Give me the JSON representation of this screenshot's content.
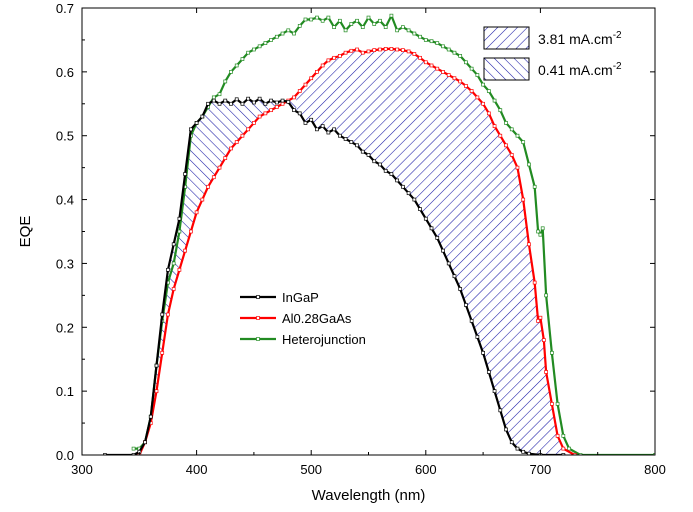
{
  "chart_data": {
    "type": "line",
    "xlabel": "Wavelength (nm)",
    "ylabel": "EQE",
    "xlim": [
      300,
      800
    ],
    "ylim": [
      0,
      0.7
    ],
    "xticks": [
      300,
      400,
      500,
      600,
      700,
      800
    ],
    "yticks": [
      0.0,
      0.1,
      0.2,
      0.3,
      0.4,
      0.5,
      0.6,
      0.7
    ],
    "grid": false,
    "legend_position": "center-left",
    "series": [
      {
        "name": "InGaP",
        "color": "#000000",
        "points": [
          [
            320,
            0
          ],
          [
            345,
            0
          ],
          [
            350,
            0.005
          ],
          [
            355,
            0.02
          ],
          [
            360,
            0.06
          ],
          [
            365,
            0.14
          ],
          [
            370,
            0.22
          ],
          [
            375,
            0.29
          ],
          [
            380,
            0.33
          ],
          [
            385,
            0.37
          ],
          [
            390,
            0.44
          ],
          [
            395,
            0.51
          ],
          [
            400,
            0.52
          ],
          [
            405,
            0.53
          ],
          [
            410,
            0.55
          ],
          [
            415,
            0.555
          ],
          [
            420,
            0.55
          ],
          [
            425,
            0.555
          ],
          [
            430,
            0.55
          ],
          [
            435,
            0.557
          ],
          [
            440,
            0.55
          ],
          [
            445,
            0.558
          ],
          [
            450,
            0.552
          ],
          [
            455,
            0.558
          ],
          [
            460,
            0.55
          ],
          [
            465,
            0.555
          ],
          [
            470,
            0.552
          ],
          [
            475,
            0.555
          ],
          [
            480,
            0.553
          ],
          [
            485,
            0.54
          ],
          [
            490,
            0.535
          ],
          [
            495,
            0.52
          ],
          [
            500,
            0.525
          ],
          [
            505,
            0.51
          ],
          [
            510,
            0.515
          ],
          [
            515,
            0.505
          ],
          [
            520,
            0.51
          ],
          [
            525,
            0.5
          ],
          [
            530,
            0.495
          ],
          [
            535,
            0.49
          ],
          [
            540,
            0.485
          ],
          [
            545,
            0.475
          ],
          [
            550,
            0.47
          ],
          [
            555,
            0.46
          ],
          [
            560,
            0.455
          ],
          [
            565,
            0.445
          ],
          [
            570,
            0.44
          ],
          [
            575,
            0.43
          ],
          [
            580,
            0.42
          ],
          [
            585,
            0.41
          ],
          [
            590,
            0.4
          ],
          [
            595,
            0.385
          ],
          [
            600,
            0.37
          ],
          [
            605,
            0.355
          ],
          [
            610,
            0.34
          ],
          [
            615,
            0.32
          ],
          [
            620,
            0.3
          ],
          [
            625,
            0.28
          ],
          [
            630,
            0.26
          ],
          [
            635,
            0.235
          ],
          [
            640,
            0.21
          ],
          [
            645,
            0.185
          ],
          [
            650,
            0.16
          ],
          [
            655,
            0.13
          ],
          [
            660,
            0.1
          ],
          [
            665,
            0.07
          ],
          [
            670,
            0.04
          ],
          [
            675,
            0.02
          ],
          [
            680,
            0.01
          ],
          [
            685,
            0.005
          ],
          [
            690,
            0.002
          ],
          [
            700,
            0
          ],
          [
            720,
            0
          ]
        ]
      },
      {
        "name": "Al0.28GaAs",
        "color": "#ff0000",
        "points": [
          [
            350,
            0
          ],
          [
            355,
            0.02
          ],
          [
            360,
            0.05
          ],
          [
            365,
            0.1
          ],
          [
            370,
            0.16
          ],
          [
            375,
            0.22
          ],
          [
            380,
            0.26
          ],
          [
            385,
            0.29
          ],
          [
            390,
            0.32
          ],
          [
            395,
            0.35
          ],
          [
            400,
            0.38
          ],
          [
            405,
            0.4
          ],
          [
            410,
            0.42
          ],
          [
            415,
            0.435
          ],
          [
            420,
            0.45
          ],
          [
            425,
            0.465
          ],
          [
            430,
            0.48
          ],
          [
            435,
            0.49
          ],
          [
            440,
            0.5
          ],
          [
            445,
            0.51
          ],
          [
            450,
            0.52
          ],
          [
            455,
            0.53
          ],
          [
            460,
            0.535
          ],
          [
            465,
            0.54
          ],
          [
            470,
            0.545
          ],
          [
            475,
            0.55
          ],
          [
            480,
            0.555
          ],
          [
            485,
            0.56
          ],
          [
            490,
            0.57
          ],
          [
            495,
            0.58
          ],
          [
            500,
            0.59
          ],
          [
            505,
            0.6
          ],
          [
            510,
            0.61
          ],
          [
            515,
            0.618
          ],
          [
            520,
            0.622
          ],
          [
            525,
            0.625
          ],
          [
            530,
            0.63
          ],
          [
            535,
            0.633
          ],
          [
            540,
            0.635
          ],
          [
            545,
            0.63
          ],
          [
            550,
            0.632
          ],
          [
            555,
            0.634
          ],
          [
            560,
            0.635
          ],
          [
            565,
            0.636
          ],
          [
            570,
            0.636
          ],
          [
            575,
            0.635
          ],
          [
            580,
            0.634
          ],
          [
            585,
            0.632
          ],
          [
            590,
            0.628
          ],
          [
            595,
            0.622
          ],
          [
            600,
            0.615
          ],
          [
            605,
            0.61
          ],
          [
            610,
            0.605
          ],
          [
            615,
            0.6
          ],
          [
            620,
            0.595
          ],
          [
            625,
            0.59
          ],
          [
            630,
            0.585
          ],
          [
            635,
            0.578
          ],
          [
            640,
            0.57
          ],
          [
            645,
            0.56
          ],
          [
            650,
            0.55
          ],
          [
            655,
            0.535
          ],
          [
            660,
            0.515
          ],
          [
            665,
            0.5
          ],
          [
            670,
            0.485
          ],
          [
            675,
            0.47
          ],
          [
            680,
            0.45
          ],
          [
            685,
            0.4
          ],
          [
            690,
            0.33
          ],
          [
            695,
            0.27
          ],
          [
            698,
            0.21
          ],
          [
            700,
            0.215
          ],
          [
            703,
            0.18
          ],
          [
            705,
            0.13
          ],
          [
            710,
            0.08
          ],
          [
            715,
            0.03
          ],
          [
            720,
            0.01
          ],
          [
            730,
            0
          ]
        ]
      },
      {
        "name": "Heterojunction",
        "color": "#228b22",
        "points": [
          [
            345,
            0.01
          ],
          [
            350,
            0.01
          ],
          [
            355,
            0.02
          ],
          [
            360,
            0.06
          ],
          [
            365,
            0.14
          ],
          [
            370,
            0.21
          ],
          [
            375,
            0.27
          ],
          [
            380,
            0.3
          ],
          [
            385,
            0.35
          ],
          [
            390,
            0.42
          ],
          [
            395,
            0.5
          ],
          [
            400,
            0.52
          ],
          [
            405,
            0.53
          ],
          [
            410,
            0.545
          ],
          [
            415,
            0.56
          ],
          [
            420,
            0.565
          ],
          [
            425,
            0.585
          ],
          [
            430,
            0.6
          ],
          [
            435,
            0.61
          ],
          [
            440,
            0.62
          ],
          [
            445,
            0.63
          ],
          [
            450,
            0.635
          ],
          [
            455,
            0.64
          ],
          [
            460,
            0.645
          ],
          [
            465,
            0.65
          ],
          [
            470,
            0.655
          ],
          [
            475,
            0.66
          ],
          [
            480,
            0.665
          ],
          [
            485,
            0.66
          ],
          [
            490,
            0.672
          ],
          [
            495,
            0.682
          ],
          [
            500,
            0.682
          ],
          [
            505,
            0.685
          ],
          [
            510,
            0.68
          ],
          [
            515,
            0.685
          ],
          [
            520,
            0.67
          ],
          [
            525,
            0.68
          ],
          [
            530,
            0.665
          ],
          [
            535,
            0.675
          ],
          [
            540,
            0.68
          ],
          [
            545,
            0.67
          ],
          [
            550,
            0.685
          ],
          [
            555,
            0.675
          ],
          [
            560,
            0.68
          ],
          [
            565,
            0.67
          ],
          [
            570,
            0.688
          ],
          [
            575,
            0.665
          ],
          [
            580,
            0.67
          ],
          [
            585,
            0.665
          ],
          [
            590,
            0.66
          ],
          [
            595,
            0.655
          ],
          [
            600,
            0.65
          ],
          [
            605,
            0.648
          ],
          [
            610,
            0.645
          ],
          [
            615,
            0.64
          ],
          [
            620,
            0.635
          ],
          [
            625,
            0.63
          ],
          [
            630,
            0.625
          ],
          [
            635,
            0.615
          ],
          [
            640,
            0.605
          ],
          [
            645,
            0.595
          ],
          [
            650,
            0.58
          ],
          [
            655,
            0.57
          ],
          [
            660,
            0.555
          ],
          [
            665,
            0.54
          ],
          [
            670,
            0.52
          ],
          [
            675,
            0.51
          ],
          [
            680,
            0.5
          ],
          [
            685,
            0.49
          ],
          [
            690,
            0.455
          ],
          [
            695,
            0.42
          ],
          [
            698,
            0.35
          ],
          [
            700,
            0.345
          ],
          [
            702,
            0.355
          ],
          [
            705,
            0.25
          ],
          [
            710,
            0.16
          ],
          [
            715,
            0.08
          ],
          [
            720,
            0.03
          ],
          [
            725,
            0.01
          ],
          [
            735,
            0
          ],
          [
            800,
            0
          ]
        ]
      }
    ],
    "fill_legend": [
      {
        "label": "3.81 mA.cm",
        "superscript": "-2"
      },
      {
        "label": "0.41 mA.cm",
        "superscript": "-2"
      }
    ],
    "fill_color": "#1a1aa6"
  }
}
